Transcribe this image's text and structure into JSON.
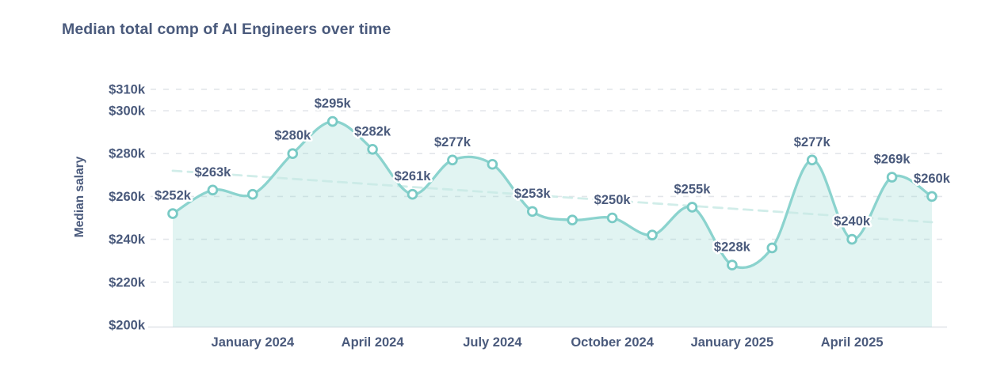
{
  "chart": {
    "title": "Median total comp of AI Engineers over time",
    "ylabel": "Median salary"
  },
  "chart_data": {
    "type": "line",
    "title": "Median total comp of AI Engineers over time",
    "xlabel": "",
    "ylabel": "Median salary",
    "ylim": [
      200,
      313
    ],
    "grid": "horizontal-dashed",
    "legend": "none",
    "y_ticks": [
      {
        "value": 310,
        "label": "$310k"
      },
      {
        "value": 300,
        "label": "$300k"
      },
      {
        "value": 280,
        "label": "$280k"
      },
      {
        "value": 260,
        "label": "$260k"
      },
      {
        "value": 240,
        "label": "$240k"
      },
      {
        "value": 220,
        "label": "$220k"
      },
      {
        "value": 200,
        "label": "$200k"
      }
    ],
    "x_ticks": [
      {
        "label": "January 2024",
        "point_index": 2
      },
      {
        "label": "April 2024",
        "point_index": 5
      },
      {
        "label": "July 2024",
        "point_index": 8
      },
      {
        "label": "October 2024",
        "point_index": 11
      },
      {
        "label": "January 2025",
        "point_index": 14
      },
      {
        "label": "April 2025",
        "point_index": 17
      }
    ],
    "series": [
      {
        "name": "median-total-comp",
        "unit": "$k",
        "marker": "circle",
        "values": [
          252,
          263,
          261,
          280,
          295,
          282,
          261,
          277,
          275,
          253,
          249,
          250,
          242,
          255,
          228,
          236,
          277,
          240,
          269,
          260
        ],
        "point_labels": [
          "$252k",
          "$263k",
          null,
          "$280k",
          "$295k",
          "$282k",
          "$261k",
          "$277k",
          null,
          "$253k",
          null,
          "$250k",
          null,
          "$255k",
          "$228k",
          null,
          "$277k",
          "$240k",
          "$269k",
          "$260k"
        ]
      }
    ],
    "trendline": {
      "style": "dashed",
      "start_value": 272,
      "end_value": 248
    },
    "colors": {
      "line": "#8bd3ce",
      "marker_stroke": "#79cac5",
      "marker_fill": "#ffffff",
      "area_fill": "#8bd3ce",
      "area_opacity": 0.26,
      "trend": "#c9eae6",
      "grid": "#e3e6ea",
      "axis_line": "#dfe3e7",
      "text": "#4a5a7c"
    }
  }
}
